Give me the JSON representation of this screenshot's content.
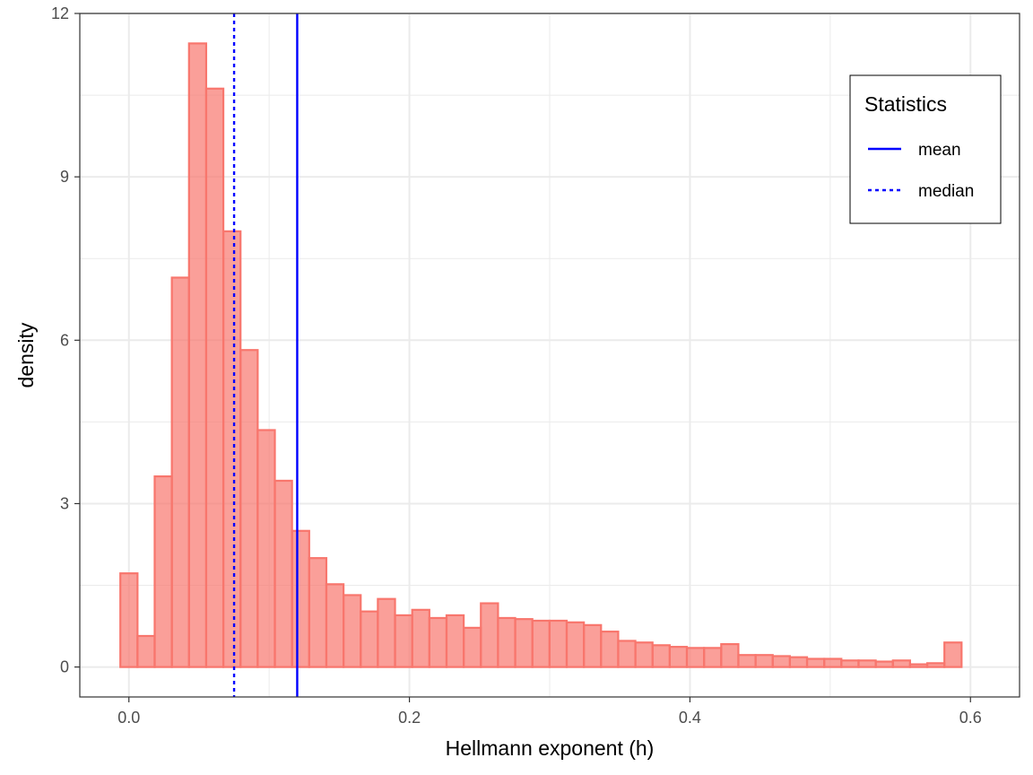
{
  "chart_data": {
    "type": "bar",
    "subtype": "histogram",
    "xlabel": "Hellmann exponent (h)",
    "ylabel": "density",
    "xlim": [
      -0.035,
      0.635
    ],
    "ylim": [
      -0.55,
      12
    ],
    "x_ticks": [
      0.0,
      0.2,
      0.4,
      0.6
    ],
    "x_tick_labels": [
      "0.0",
      "0.2",
      "0.4",
      "0.6"
    ],
    "y_ticks": [
      0,
      3,
      6,
      9,
      12
    ],
    "y_tick_labels": [
      "0",
      "3",
      "6",
      "9",
      "12"
    ],
    "grid": true,
    "bin_width": 0.01224,
    "bin_start": -0.0061,
    "values": [
      1.72,
      0.57,
      3.5,
      7.15,
      11.45,
      10.62,
      8.0,
      5.82,
      4.35,
      3.42,
      2.5,
      2.0,
      1.52,
      1.32,
      1.02,
      1.25,
      0.95,
      1.05,
      0.9,
      0.95,
      0.72,
      1.17,
      0.9,
      0.88,
      0.85,
      0.85,
      0.82,
      0.77,
      0.65,
      0.48,
      0.45,
      0.4,
      0.37,
      0.35,
      0.35,
      0.42,
      0.22,
      0.22,
      0.2,
      0.18,
      0.15,
      0.15,
      0.12,
      0.12,
      0.1,
      0.12,
      0.05,
      0.07,
      0.45
    ],
    "bar_fill": "#f8766d",
    "bar_fill_opacity": 0.7,
    "bar_stroke": "#f8766d",
    "lines": [
      {
        "name": "mean",
        "x": 0.12,
        "color": "#0000ff",
        "style": "solid"
      },
      {
        "name": "median",
        "x": 0.075,
        "color": "#0000ff",
        "style": "dotted"
      }
    ],
    "legend": {
      "title": "Statistics",
      "position": "top-right",
      "entries": [
        "mean",
        "median"
      ]
    }
  }
}
